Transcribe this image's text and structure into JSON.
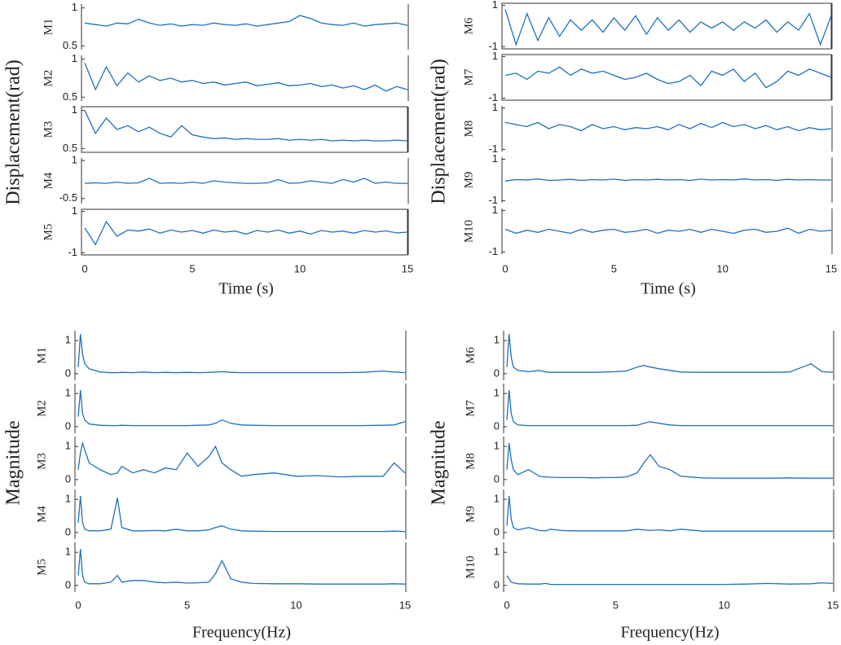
{
  "chart_data": [
    {
      "type": "line",
      "ylabel": "Displacement(rad)",
      "xlabel": "Time (s)",
      "xlim": [
        0,
        15
      ],
      "xticks": [
        0,
        5,
        10,
        15
      ],
      "color": "#1f6fbf",
      "x": [
        0,
        0.5,
        1,
        1.5,
        2,
        2.5,
        3,
        3.5,
        4,
        4.5,
        5,
        5.5,
        6,
        6.5,
        7,
        7.5,
        8,
        8.5,
        9,
        9.5,
        10,
        10.5,
        11,
        11.5,
        12,
        12.5,
        13,
        13.5,
        14,
        14.5,
        15
      ],
      "panels": [
        {
          "name": "M1",
          "ylim": [
            0.45,
            1.05
          ],
          "yticks": [
            0.5,
            1
          ],
          "frame": false,
          "values": [
            0.8,
            0.78,
            0.76,
            0.8,
            0.79,
            0.85,
            0.8,
            0.77,
            0.79,
            0.76,
            0.78,
            0.77,
            0.8,
            0.78,
            0.77,
            0.79,
            0.76,
            0.78,
            0.8,
            0.82,
            0.9,
            0.86,
            0.8,
            0.78,
            0.77,
            0.8,
            0.76,
            0.78,
            0.79,
            0.8,
            0.77
          ]
        },
        {
          "name": "M2",
          "ylim": [
            0.45,
            1.05
          ],
          "yticks": [
            0.5,
            1
          ],
          "frame": false,
          "values": [
            0.95,
            0.6,
            0.9,
            0.65,
            0.82,
            0.7,
            0.78,
            0.72,
            0.75,
            0.7,
            0.72,
            0.68,
            0.7,
            0.66,
            0.68,
            0.7,
            0.65,
            0.67,
            0.69,
            0.65,
            0.66,
            0.68,
            0.64,
            0.66,
            0.62,
            0.65,
            0.6,
            0.66,
            0.58,
            0.64,
            0.6
          ]
        },
        {
          "name": "M3",
          "ylim": [
            0.45,
            1.05
          ],
          "yticks": [
            0.5,
            1
          ],
          "frame": true,
          "values": [
            1.0,
            0.7,
            0.9,
            0.75,
            0.8,
            0.72,
            0.78,
            0.7,
            0.65,
            0.8,
            0.68,
            0.65,
            0.63,
            0.64,
            0.62,
            0.63,
            0.62,
            0.62,
            0.63,
            0.61,
            0.62,
            0.61,
            0.62,
            0.6,
            0.61,
            0.6,
            0.61,
            0.6,
            0.6,
            0.61,
            0.6
          ]
        },
        {
          "name": "M4",
          "ylim": [
            -0.7,
            1.1
          ],
          "yticks": [
            -0.5,
            1
          ],
          "frame": false,
          "values": [
            0.1,
            0.12,
            0.1,
            0.15,
            0.1,
            0.12,
            0.3,
            0.1,
            0.12,
            0.1,
            0.15,
            0.1,
            0.2,
            0.15,
            0.12,
            0.1,
            0.1,
            0.12,
            0.25,
            0.1,
            0.12,
            0.2,
            0.15,
            0.1,
            0.25,
            0.15,
            0.3,
            0.1,
            0.15,
            0.1,
            0.1
          ]
        },
        {
          "name": "M5",
          "ylim": [
            -1.1,
            1.1
          ],
          "yticks": [
            -1,
            1
          ],
          "frame": true,
          "values": [
            0.2,
            -0.6,
            0.5,
            -0.2,
            0.1,
            0.05,
            0.15,
            -0.05,
            0.1,
            0,
            0.08,
            -0.05,
            0.1,
            0,
            0.05,
            -0.1,
            0.08,
            0,
            0.1,
            -0.05,
            0.05,
            -0.1,
            0.08,
            0,
            0.05,
            -0.05,
            0.08,
            0,
            0.06,
            -0.04,
            0
          ]
        }
      ]
    },
    {
      "type": "line",
      "ylabel": "Displacement(rad)",
      "xlabel": "Time (s)",
      "xlim": [
        0,
        15
      ],
      "xticks": [
        0,
        5,
        10,
        15
      ],
      "color": "#1f6fbf",
      "x": [
        0,
        0.5,
        1,
        1.5,
        2,
        2.5,
        3,
        3.5,
        4,
        4.5,
        5,
        5.5,
        6,
        6.5,
        7,
        7.5,
        8,
        8.5,
        9,
        9.5,
        10,
        10.5,
        11,
        11.5,
        12,
        12.5,
        13,
        13.5,
        14,
        14.5,
        15
      ],
      "panels": [
        {
          "name": "M6",
          "ylim": [
            -1.1,
            1.1
          ],
          "yticks": [
            -1,
            1
          ],
          "frame": true,
          "values": [
            0.8,
            -0.9,
            0.6,
            -0.7,
            0.4,
            -0.5,
            0.3,
            -0.2,
            0.3,
            -0.3,
            0.4,
            -0.2,
            0.5,
            -0.4,
            0.4,
            -0.2,
            0.3,
            -0.3,
            0.2,
            -0.1,
            0.2,
            -0.2,
            0.2,
            -0.1,
            0.3,
            -0.3,
            0.2,
            -0.2,
            0.6,
            -0.9,
            0.5
          ]
        },
        {
          "name": "M7",
          "ylim": [
            -1.1,
            1.1
          ],
          "yticks": [
            -1,
            1
          ],
          "frame": true,
          "values": [
            0.1,
            0.2,
            -0.1,
            0.3,
            0.2,
            0.5,
            0.1,
            0.4,
            0.2,
            0.3,
            0.1,
            -0.1,
            0,
            0.2,
            -0.1,
            -0.3,
            -0.2,
            0.1,
            -0.4,
            0.3,
            0.1,
            0.4,
            -0.2,
            0.2,
            -0.5,
            -0.2,
            0.3,
            0.1,
            0.4,
            0.2,
            0
          ]
        },
        {
          "name": "M8",
          "ylim": [
            -1.1,
            1.1
          ],
          "yticks": [
            -1,
            1
          ],
          "frame": false,
          "values": [
            0.3,
            0.2,
            0.1,
            0.3,
            0,
            0.2,
            0.1,
            -0.1,
            0.2,
            0,
            0.1,
            -0.05,
            0.05,
            0,
            0.1,
            -0.05,
            0.2,
            0,
            0.25,
            0.05,
            0.3,
            0.1,
            0.2,
            0,
            0.15,
            -0.05,
            0.1,
            -0.1,
            0.05,
            -0.05,
            0
          ]
        },
        {
          "name": "M9",
          "ylim": [
            -1.1,
            1.1
          ],
          "yticks": [
            -1,
            1
          ],
          "frame": false,
          "values": [
            -0.05,
            0.02,
            0,
            0.05,
            -0.02,
            0,
            0.03,
            -0.02,
            0.02,
            0,
            0.04,
            -0.02,
            0.02,
            0,
            0.03,
            0,
            0.02,
            -0.02,
            0.04,
            0,
            0.02,
            0,
            0.05,
            0,
            0.02,
            -0.02,
            0.03,
            0,
            0.02,
            0,
            0
          ]
        },
        {
          "name": "M10",
          "ylim": [
            -1.1,
            1.1
          ],
          "yticks": [
            -1,
            1
          ],
          "frame": false,
          "values": [
            0.1,
            -0.1,
            0.05,
            -0.05,
            0.1,
            0,
            -0.1,
            0.1,
            -0.05,
            0.05,
            0.1,
            -0.05,
            0,
            0.1,
            -0.1,
            0.05,
            0,
            0.1,
            -0.05,
            0.1,
            0,
            -0.1,
            0.05,
            0.1,
            -0.05,
            0,
            0.15,
            -0.1,
            0.1,
            0,
            0.05
          ]
        }
      ]
    },
    {
      "type": "line",
      "ylabel": "Magnitude",
      "xlabel": "Frequency(Hz)",
      "xlim": [
        0,
        15
      ],
      "xticks": [
        0,
        5,
        10,
        15
      ],
      "color": "#1f6fbf",
      "x": [
        0,
        0.1,
        0.2,
        0.3,
        0.5,
        1,
        1.5,
        1.8,
        2,
        2.5,
        3,
        3.5,
        4,
        4.5,
        5,
        5.5,
        6,
        6.3,
        6.6,
        7,
        7.5,
        8,
        9,
        10,
        11,
        12,
        13,
        14,
        14.5,
        15
      ],
      "panels": [
        {
          "name": "M1",
          "ylim": [
            -0.2,
            1.3
          ],
          "yticks": [
            0,
            1
          ],
          "frame": false,
          "values": [
            0.2,
            1.2,
            0.6,
            0.3,
            0.15,
            0.05,
            0.03,
            0.03,
            0.04,
            0.03,
            0.05,
            0.03,
            0.04,
            0.03,
            0.04,
            0.03,
            0.04,
            0.05,
            0.06,
            0.04,
            0.03,
            0.03,
            0.03,
            0.03,
            0.03,
            0.03,
            0.04,
            0.08,
            0.05,
            0.03
          ]
        },
        {
          "name": "M2",
          "ylim": [
            -0.2,
            1.3
          ],
          "yticks": [
            0,
            1
          ],
          "frame": false,
          "values": [
            0.3,
            1.1,
            0.4,
            0.2,
            0.08,
            0.04,
            0.03,
            0.03,
            0.04,
            0.03,
            0.03,
            0.03,
            0.03,
            0.03,
            0.03,
            0.04,
            0.05,
            0.1,
            0.2,
            0.1,
            0.05,
            0.04,
            0.03,
            0.03,
            0.03,
            0.03,
            0.03,
            0.04,
            0.05,
            0.15
          ]
        },
        {
          "name": "M3",
          "ylim": [
            -0.2,
            1.3
          ],
          "yticks": [
            0,
            1
          ],
          "frame": false,
          "values": [
            0.3,
            0.8,
            1.1,
            0.9,
            0.5,
            0.3,
            0.15,
            0.2,
            0.4,
            0.2,
            0.3,
            0.2,
            0.35,
            0.3,
            0.8,
            0.4,
            0.7,
            1.0,
            0.5,
            0.3,
            0.1,
            0.15,
            0.2,
            0.1,
            0.12,
            0.08,
            0.1,
            0.1,
            0.5,
            0.2
          ]
        },
        {
          "name": "M4",
          "ylim": [
            -0.2,
            1.3
          ],
          "yticks": [
            0,
            1
          ],
          "frame": false,
          "values": [
            0.3,
            1.1,
            0.3,
            0.1,
            0.05,
            0.05,
            0.1,
            1.05,
            0.15,
            0.05,
            0.05,
            0.06,
            0.05,
            0.1,
            0.05,
            0.05,
            0.08,
            0.15,
            0.2,
            0.1,
            0.05,
            0.04,
            0.03,
            0.03,
            0.03,
            0.03,
            0.03,
            0.03,
            0.04,
            0.03
          ]
        },
        {
          "name": "M5",
          "ylim": [
            -0.2,
            1.3
          ],
          "yticks": [
            0,
            1
          ],
          "frame": false,
          "values": [
            0.3,
            1.1,
            0.3,
            0.1,
            0.05,
            0.05,
            0.1,
            0.3,
            0.1,
            0.15,
            0.15,
            0.1,
            0.08,
            0.1,
            0.07,
            0.08,
            0.1,
            0.35,
            0.75,
            0.2,
            0.1,
            0.06,
            0.05,
            0.05,
            0.04,
            0.04,
            0.04,
            0.04,
            0.05,
            0.04
          ]
        }
      ]
    },
    {
      "type": "line",
      "ylabel": "Magnitude",
      "xlabel": "Frequency(Hz)",
      "xlim": [
        0,
        15
      ],
      "xticks": [
        0,
        5,
        10,
        15
      ],
      "color": "#1f6fbf",
      "x": [
        0,
        0.1,
        0.2,
        0.3,
        0.5,
        1,
        1.5,
        1.8,
        2,
        2.5,
        3,
        3.5,
        4,
        4.5,
        5,
        5.5,
        6,
        6.3,
        6.6,
        7,
        7.5,
        8,
        9,
        10,
        11,
        12,
        13,
        14,
        14.5,
        15
      ],
      "panels": [
        {
          "name": "M6",
          "ylim": [
            -0.2,
            1.3
          ],
          "yticks": [
            0,
            1
          ],
          "frame": false,
          "values": [
            0.2,
            1.2,
            0.5,
            0.2,
            0.1,
            0.06,
            0.1,
            0.05,
            0.04,
            0.04,
            0.04,
            0.04,
            0.04,
            0.05,
            0.06,
            0.08,
            0.2,
            0.25,
            0.2,
            0.15,
            0.1,
            0.05,
            0.04,
            0.04,
            0.04,
            0.04,
            0.05,
            0.3,
            0.06,
            0.04
          ]
        },
        {
          "name": "M7",
          "ylim": [
            -0.2,
            1.3
          ],
          "yticks": [
            0,
            1
          ],
          "frame": false,
          "values": [
            0.2,
            1.1,
            0.4,
            0.15,
            0.05,
            0.03,
            0.03,
            0.03,
            0.03,
            0.03,
            0.03,
            0.03,
            0.03,
            0.03,
            0.03,
            0.03,
            0.04,
            0.1,
            0.15,
            0.1,
            0.05,
            0.03,
            0.03,
            0.03,
            0.03,
            0.03,
            0.03,
            0.03,
            0.03,
            0.03
          ]
        },
        {
          "name": "M8",
          "ylim": [
            -0.2,
            1.3
          ],
          "yticks": [
            0,
            1
          ],
          "frame": false,
          "values": [
            0.3,
            1.1,
            0.6,
            0.3,
            0.15,
            0.3,
            0.1,
            0.08,
            0.07,
            0.06,
            0.06,
            0.06,
            0.05,
            0.06,
            0.06,
            0.08,
            0.2,
            0.5,
            0.75,
            0.4,
            0.3,
            0.1,
            0.05,
            0.04,
            0.04,
            0.04,
            0.05,
            0.04,
            0.04,
            0.04
          ]
        },
        {
          "name": "M9",
          "ylim": [
            -0.2,
            1.3
          ],
          "yticks": [
            0,
            1
          ],
          "frame": false,
          "values": [
            0.2,
            1.1,
            0.4,
            0.15,
            0.08,
            0.15,
            0.06,
            0.05,
            0.1,
            0.06,
            0.05,
            0.05,
            0.05,
            0.05,
            0.05,
            0.05,
            0.1,
            0.08,
            0.06,
            0.08,
            0.05,
            0.1,
            0.04,
            0.04,
            0.04,
            0.04,
            0.04,
            0.04,
            0.04,
            0.04
          ]
        },
        {
          "name": "M10",
          "ylim": [
            -0.2,
            1.3
          ],
          "yticks": [
            0,
            1
          ],
          "frame": false,
          "values": [
            0.3,
            0.2,
            0.1,
            0.08,
            0.05,
            0.04,
            0.04,
            0.06,
            0.03,
            0.03,
            0.03,
            0.03,
            0.03,
            0.03,
            0.03,
            0.03,
            0.03,
            0.03,
            0.03,
            0.03,
            0.03,
            0.03,
            0.03,
            0.03,
            0.04,
            0.06,
            0.04,
            0.05,
            0.08,
            0.06
          ]
        }
      ]
    }
  ]
}
